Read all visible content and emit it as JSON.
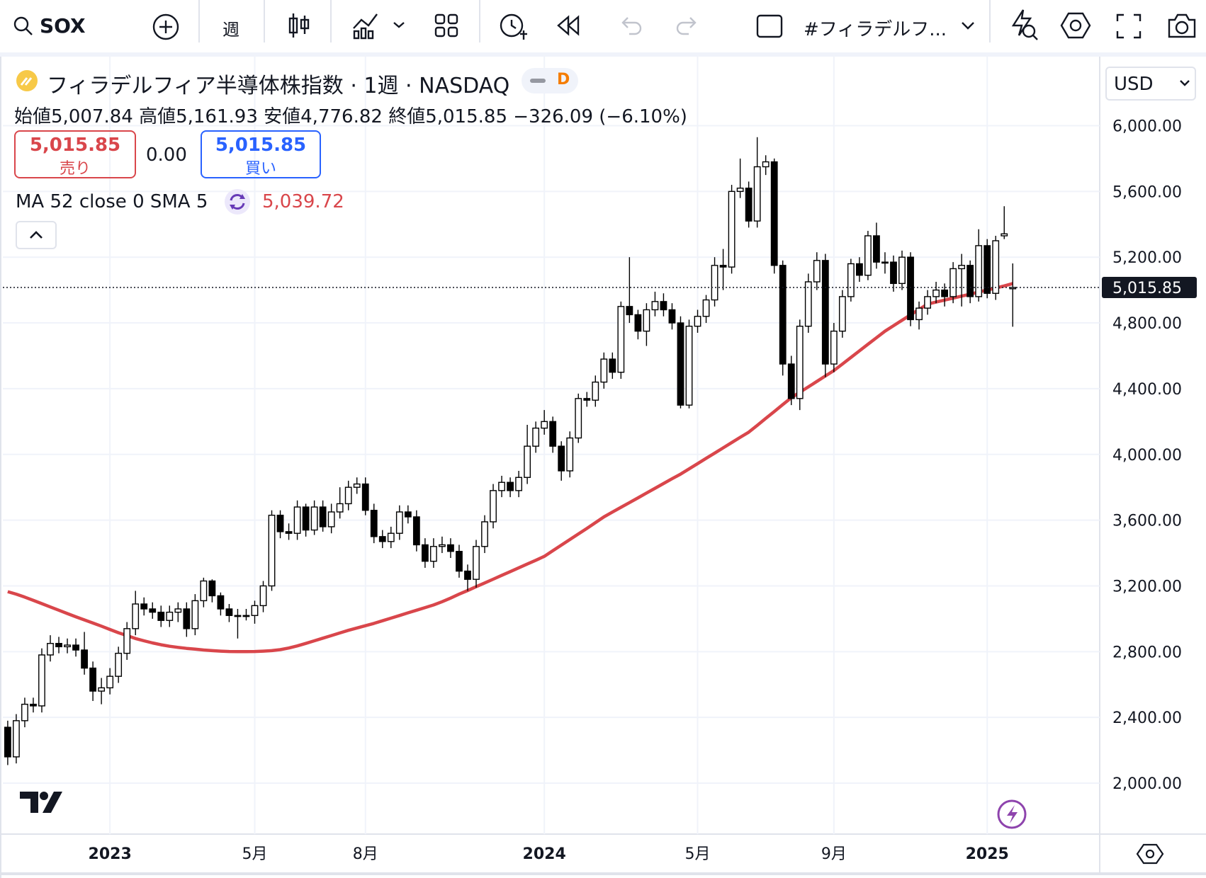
{
  "header": {
    "symbol": "SOX",
    "interval": "週",
    "layout_name": "#フィラデルフ...",
    "currency": "USD"
  },
  "legend": {
    "title": "フィラデルフィア半導体株指数 · 1週 · NASDAQ",
    "badge": "D",
    "open_label": "始値",
    "open": "5,007.84",
    "high_label": "高値",
    "high": "5,161.93",
    "low_label": "安値",
    "low": "4,776.82",
    "close_label": "終値",
    "close": "5,015.85",
    "change": "−326.09 (−6.10%)",
    "sell_price": "5,015.85",
    "sell_label": "売り",
    "spread": "0.00",
    "buy_price": "5,015.85",
    "buy_label": "買い",
    "ma_value": "5,039.72"
  },
  "chart_data": {
    "type": "candlestick",
    "up_color": "#ffffff",
    "down_color": "#000000",
    "grid": true,
    "categories": [
      null,
      null,
      null,
      null,
      null,
      null,
      null,
      null,
      null,
      null,
      null,
      null,
      "2023",
      null,
      null,
      null,
      null,
      null,
      null,
      null,
      null,
      null,
      null,
      null,
      null,
      null,
      null,
      null,
      null,
      "5月",
      null,
      null,
      null,
      null,
      null,
      null,
      null,
      null,
      null,
      null,
      null,
      null,
      "8月",
      null,
      null,
      null,
      null,
      null,
      null,
      null,
      null,
      null,
      null,
      null,
      null,
      null,
      null,
      null,
      null,
      null,
      null,
      null,
      null,
      "2024",
      null,
      null,
      null,
      null,
      null,
      null,
      null,
      null,
      null,
      null,
      null,
      null,
      null,
      null,
      null,
      null,
      null,
      "5月",
      null,
      null,
      null,
      null,
      null,
      null,
      null,
      null,
      null,
      null,
      null,
      null,
      null,
      null,
      null,
      "9月",
      null,
      null,
      null,
      null,
      null,
      null,
      null,
      null,
      null,
      null,
      null,
      null,
      null,
      null,
      null,
      null,
      null,
      "2025",
      null,
      null,
      null
    ],
    "open": [
      2340,
      2160,
      2380,
      2480,
      2470,
      2780,
      2850,
      2830,
      2840,
      2810,
      2700,
      2560,
      2580,
      2650,
      2790,
      2940,
      3090,
      3060,
      3040,
      2990,
      3040,
      3060,
      2940,
      3110,
      3230,
      3140,
      3060,
      3020,
      3020,
      3020,
      3080,
      3200,
      3630,
      3530,
      3520,
      3680,
      3540,
      3680,
      3560,
      3650,
      3700,
      3800,
      3820,
      3660,
      3500,
      3470,
      3520,
      3650,
      3620,
      3450,
      3350,
      3440,
      3450,
      3410,
      3290,
      3240,
      3440,
      3590,
      3780,
      3830,
      3780,
      3860,
      4050,
      4160,
      4200,
      4050,
      3900,
      4100,
      4340,
      4330,
      4440,
      4580,
      4500,
      4900,
      4850,
      4750,
      4880,
      4930,
      4880,
      4800,
      4300,
      4780,
      4840,
      4940,
      5150,
      5140,
      5600,
      5620,
      5420,
      5750,
      5780,
      5150,
      4550,
      4340,
      4780,
      5050,
      5180,
      4550,
      4750,
      4960,
      5160,
      5090,
      5330,
      5170,
      5170,
      5040,
      5200,
      4820,
      4890,
      4960,
      5000,
      4960,
      5130,
      5150,
      4960,
      5270,
      4980,
      5330,
      5007.84
    ],
    "high": [
      2380,
      2420,
      2520,
      2520,
      2820,
      2900,
      2890,
      2880,
      2880,
      2920,
      2740,
      2640,
      2700,
      2830,
      2980,
      3170,
      3130,
      3100,
      3080,
      3080,
      3100,
      3100,
      3150,
      3250,
      3240,
      3160,
      3090,
      3060,
      3060,
      3110,
      3230,
      3660,
      3660,
      3580,
      3720,
      3700,
      3720,
      3720,
      3700,
      3800,
      3840,
      3860,
      3860,
      3700,
      3540,
      3560,
      3690,
      3690,
      3660,
      3490,
      3490,
      3500,
      3490,
      3450,
      3330,
      3480,
      3630,
      3820,
      3870,
      3860,
      3900,
      4180,
      4200,
      4270,
      4230,
      4080,
      4140,
      4370,
      4380,
      4480,
      4620,
      4620,
      4930,
      5200,
      4880,
      4920,
      4990,
      4980,
      4920,
      4840,
      4820,
      4880,
      4970,
      5200,
      5250,
      5640,
      5800,
      5660,
      5930,
      5820,
      5800,
      5180,
      4600,
      4820,
      5100,
      5230,
      5220,
      4800,
      5000,
      5190,
      5200,
      5360,
      5410,
      5230,
      5210,
      5240,
      5230,
      4930,
      5000,
      5050,
      5040,
      5170,
      5220,
      5180,
      5370,
      5310,
      5330,
      5510,
      5161.93
    ],
    "low": [
      2110,
      2120,
      2340,
      2430,
      2430,
      2740,
      2790,
      2790,
      2770,
      2660,
      2500,
      2480,
      2540,
      2610,
      2750,
      2900,
      3020,
      3000,
      2950,
      2950,
      2980,
      2890,
      2900,
      3070,
      3100,
      3020,
      2980,
      2880,
      2990,
      2970,
      3040,
      3170,
      3490,
      3480,
      3480,
      3500,
      3510,
      3530,
      3520,
      3610,
      3660,
      3760,
      3630,
      3460,
      3430,
      3430,
      3480,
      3580,
      3410,
      3310,
      3310,
      3400,
      3370,
      3250,
      3170,
      3190,
      3400,
      3550,
      3740,
      3740,
      3740,
      3820,
      4010,
      4120,
      4010,
      3840,
      3860,
      4070,
      4290,
      4290,
      4400,
      4460,
      4460,
      4800,
      4700,
      4660,
      4840,
      4840,
      4760,
      4280,
      4280,
      4740,
      4800,
      4900,
      5000,
      5100,
      5560,
      5380,
      5380,
      5700,
      5100,
      4480,
      4300,
      4270,
      4740,
      5000,
      4470,
      4500,
      4710,
      4930,
      5050,
      5060,
      5130,
      5100,
      4990,
      5000,
      4780,
      4760,
      4850,
      4920,
      4900,
      4920,
      4900,
      4920,
      4930,
      4950,
      4940,
      5310,
      4776.82
    ],
    "close": [
      2160,
      2380,
      2480,
      2470,
      2780,
      2850,
      2830,
      2840,
      2810,
      2700,
      2560,
      2580,
      2650,
      2790,
      2940,
      3090,
      3060,
      3040,
      2990,
      3040,
      3060,
      2940,
      3110,
      3230,
      3140,
      3060,
      3020,
      3020,
      3020,
      3080,
      3200,
      3630,
      3530,
      3520,
      3680,
      3540,
      3680,
      3560,
      3650,
      3700,
      3800,
      3820,
      3660,
      3500,
      3470,
      3520,
      3650,
      3620,
      3450,
      3350,
      3440,
      3450,
      3410,
      3290,
      3240,
      3440,
      3590,
      3780,
      3830,
      3780,
      3860,
      4050,
      4160,
      4200,
      4050,
      3900,
      4100,
      4340,
      4330,
      4440,
      4580,
      4500,
      4900,
      4850,
      4750,
      4880,
      4930,
      4880,
      4800,
      4300,
      4780,
      4840,
      4940,
      5150,
      5140,
      5600,
      5620,
      5420,
      5750,
      5780,
      5150,
      4550,
      4340,
      4780,
      5050,
      5180,
      4550,
      4750,
      4960,
      5160,
      5090,
      5330,
      5170,
      5170,
      5040,
      5200,
      4820,
      4890,
      4960,
      5000,
      4960,
      5130,
      5150,
      4960,
      5270,
      4980,
      5300,
      5341.94,
      5015.85
    ],
    "series": [
      {
        "name": "MA 52 close 0 SMA 5",
        "color": "#d9464b",
        "values": [
          3165,
          3150,
          3132,
          3112,
          3092,
          3072,
          3052,
          3032,
          3012,
          2993,
          2974,
          2955,
          2935,
          2915,
          2898,
          2880,
          2866,
          2853,
          2842,
          2833,
          2826,
          2820,
          2815,
          2810,
          2806,
          2803,
          2801,
          2800,
          2800,
          2801,
          2803,
          2806,
          2812,
          2822,
          2835,
          2850,
          2866,
          2882,
          2898,
          2914,
          2930,
          2944,
          2958,
          2972,
          2988,
          3004,
          3020,
          3036,
          3052,
          3068,
          3084,
          3104,
          3126,
          3150,
          3172,
          3195,
          3218,
          3241,
          3264,
          3287,
          3310,
          3333,
          3356,
          3380,
          3414,
          3448,
          3482,
          3516,
          3550,
          3585,
          3620,
          3649,
          3678,
          3707,
          3736,
          3765,
          3794,
          3823,
          3852,
          3880,
          3912,
          3944,
          3976,
          4008,
          4040,
          4072,
          4104,
          4135,
          4177,
          4219,
          4261,
          4303,
          4345,
          4378,
          4411,
          4444,
          4477,
          4510,
          4550,
          4590,
          4630,
          4670,
          4710,
          4750,
          4783,
          4816,
          4849,
          4882,
          4915,
          4927,
          4939,
          4951,
          4963,
          4975,
          4988,
          5000,
          5012,
          5025,
          5039.72
        ]
      }
    ],
    "ylim": [
      1690,
      6420
    ],
    "yticks": [
      {
        "value": 2000,
        "label": "2,000.00"
      },
      {
        "value": 2400,
        "label": "2,400.00"
      },
      {
        "value": 2800,
        "label": "2,800.00"
      },
      {
        "value": 3200,
        "label": "3,200.00"
      },
      {
        "value": 3600,
        "label": "3,600.00"
      },
      {
        "value": 4000,
        "label": "4,000.00"
      },
      {
        "value": 4400,
        "label": "4,400.00"
      },
      {
        "value": 4800,
        "label": "4,800.00"
      },
      {
        "value": 5200,
        "label": "5,200.00"
      },
      {
        "value": 5600,
        "label": "5,600.00"
      },
      {
        "value": 6000,
        "label": "6,000.00"
      }
    ],
    "last_price": {
      "value": 5015.85,
      "label": "5,015.85"
    }
  }
}
